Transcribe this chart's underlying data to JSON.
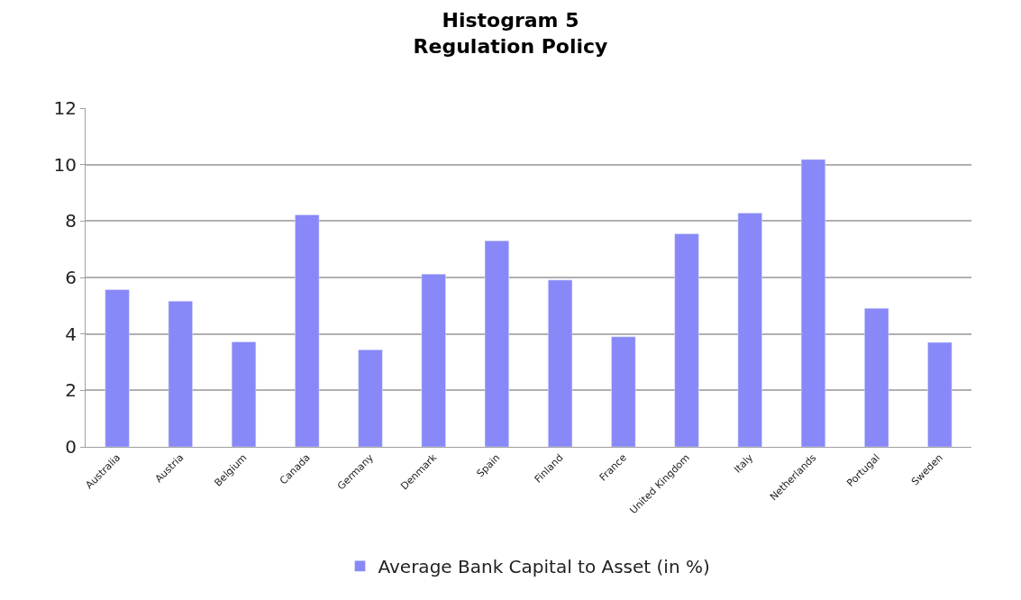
{
  "chart_data": {
    "type": "bar",
    "title": "Histogram 5\nRegulation Policy",
    "categories": [
      "Australia",
      "Austria",
      "Belgium",
      "Canada",
      "Germany",
      "Denmark",
      "Spain",
      "Finland",
      "France",
      "United Kingdom",
      "Italy",
      "Netherlands",
      "Portugal",
      "Sweden"
    ],
    "series": [
      {
        "name": "Average Bank Capital to Asset (in %)",
        "color": "#8888f8",
        "values": [
          5.57,
          5.16,
          3.72,
          8.22,
          3.44,
          6.12,
          7.3,
          5.91,
          3.9,
          7.55,
          8.28,
          10.18,
          4.91,
          3.7
        ]
      }
    ],
    "ylim": [
      0,
      12
    ],
    "yticks": [
      0,
      2,
      4,
      6,
      8,
      10,
      12
    ],
    "grid": "y",
    "legend": "bottom"
  }
}
